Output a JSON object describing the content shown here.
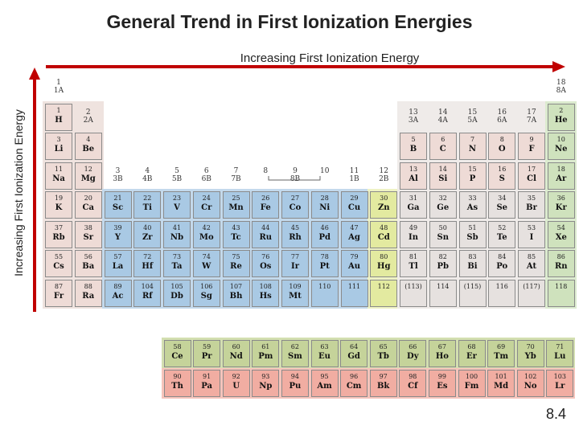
{
  "title": "General Trend in First Ionization Energies",
  "horizontal_trend_label": "Increasing First Ionization Energy",
  "vertical_trend_label": "Increasing First Ionization Energy",
  "page_number": "8.4",
  "colors": {
    "arrow": "#c00000",
    "pink": "#eedbd6",
    "blue": "#a9c9e4",
    "yellow": "#e3eaa0",
    "grey": "#e6e1df",
    "green": "#cfe2bd",
    "olive": "#c5d39a",
    "salmon": "#f1ada2"
  },
  "group_labels": [
    {
      "col": 1,
      "row": 0,
      "text": "1\n1A"
    },
    {
      "col": 2,
      "row": 1,
      "text": "2\n2A"
    },
    {
      "col": 3,
      "row": 3,
      "text": "3\n3B"
    },
    {
      "col": 4,
      "row": 3,
      "text": "4\n4B"
    },
    {
      "col": 5,
      "row": 3,
      "text": "5\n5B"
    },
    {
      "col": 6,
      "row": 3,
      "text": "6\n6B"
    },
    {
      "col": 7,
      "row": 3,
      "text": "7\n7B"
    },
    {
      "col": 8,
      "row": 3,
      "text": "8"
    },
    {
      "col": 9,
      "row": 3,
      "text": "9\n8B"
    },
    {
      "col": 10,
      "row": 3,
      "text": "10"
    },
    {
      "col": 11,
      "row": 3,
      "text": "11\n1B"
    },
    {
      "col": 12,
      "row": 3,
      "text": "12\n2B"
    },
    {
      "col": 13,
      "row": 1,
      "text": "13\n3A"
    },
    {
      "col": 14,
      "row": 1,
      "text": "14\n4A"
    },
    {
      "col": 15,
      "row": 1,
      "text": "15\n5A"
    },
    {
      "col": 16,
      "row": 1,
      "text": "16\n6A"
    },
    {
      "col": 17,
      "row": 1,
      "text": "17\n7A"
    },
    {
      "col": 18,
      "row": 0,
      "text": "18\n8A"
    }
  ],
  "elements": [
    {
      "n": "1",
      "s": "H",
      "col": 1,
      "row": 1,
      "c": "pink"
    },
    {
      "n": "2",
      "s": "He",
      "col": 18,
      "row": 1,
      "c": "green"
    },
    {
      "n": "3",
      "s": "Li",
      "col": 1,
      "row": 2,
      "c": "pink"
    },
    {
      "n": "4",
      "s": "Be",
      "col": 2,
      "row": 2,
      "c": "pink"
    },
    {
      "n": "5",
      "s": "B",
      "col": 13,
      "row": 2,
      "c": "pink"
    },
    {
      "n": "6",
      "s": "C",
      "col": 14,
      "row": 2,
      "c": "pink"
    },
    {
      "n": "7",
      "s": "N",
      "col": 15,
      "row": 2,
      "c": "pink"
    },
    {
      "n": "8",
      "s": "O",
      "col": 16,
      "row": 2,
      "c": "pink"
    },
    {
      "n": "9",
      "s": "F",
      "col": 17,
      "row": 2,
      "c": "pink"
    },
    {
      "n": "10",
      "s": "Ne",
      "col": 18,
      "row": 2,
      "c": "green"
    },
    {
      "n": "11",
      "s": "Na",
      "col": 1,
      "row": 3,
      "c": "pink"
    },
    {
      "n": "12",
      "s": "Mg",
      "col": 2,
      "row": 3,
      "c": "pink"
    },
    {
      "n": "13",
      "s": "Al",
      "col": 13,
      "row": 3,
      "c": "pink"
    },
    {
      "n": "14",
      "s": "Si",
      "col": 14,
      "row": 3,
      "c": "pink"
    },
    {
      "n": "15",
      "s": "P",
      "col": 15,
      "row": 3,
      "c": "pink"
    },
    {
      "n": "16",
      "s": "S",
      "col": 16,
      "row": 3,
      "c": "pink"
    },
    {
      "n": "17",
      "s": "Cl",
      "col": 17,
      "row": 3,
      "c": "pink"
    },
    {
      "n": "18",
      "s": "Ar",
      "col": 18,
      "row": 3,
      "c": "green"
    },
    {
      "n": "19",
      "s": "K",
      "col": 1,
      "row": 4,
      "c": "pink"
    },
    {
      "n": "20",
      "s": "Ca",
      "col": 2,
      "row": 4,
      "c": "pink"
    },
    {
      "n": "21",
      "s": "Sc",
      "col": 3,
      "row": 4,
      "c": "blue"
    },
    {
      "n": "22",
      "s": "Ti",
      "col": 4,
      "row": 4,
      "c": "blue"
    },
    {
      "n": "23",
      "s": "V",
      "col": 5,
      "row": 4,
      "c": "blue"
    },
    {
      "n": "24",
      "s": "Cr",
      "col": 6,
      "row": 4,
      "c": "blue"
    },
    {
      "n": "25",
      "s": "Mn",
      "col": 7,
      "row": 4,
      "c": "blue"
    },
    {
      "n": "26",
      "s": "Fe",
      "col": 8,
      "row": 4,
      "c": "blue"
    },
    {
      "n": "27",
      "s": "Co",
      "col": 9,
      "row": 4,
      "c": "blue"
    },
    {
      "n": "28",
      "s": "Ni",
      "col": 10,
      "row": 4,
      "c": "blue"
    },
    {
      "n": "29",
      "s": "Cu",
      "col": 11,
      "row": 4,
      "c": "blue"
    },
    {
      "n": "30",
      "s": "Zn",
      "col": 12,
      "row": 4,
      "c": "yellow"
    },
    {
      "n": "31",
      "s": "Ga",
      "col": 13,
      "row": 4,
      "c": "grey"
    },
    {
      "n": "32",
      "s": "Ge",
      "col": 14,
      "row": 4,
      "c": "grey"
    },
    {
      "n": "33",
      "s": "As",
      "col": 15,
      "row": 4,
      "c": "grey"
    },
    {
      "n": "34",
      "s": "Se",
      "col": 16,
      "row": 4,
      "c": "grey"
    },
    {
      "n": "35",
      "s": "Br",
      "col": 17,
      "row": 4,
      "c": "grey"
    },
    {
      "n": "36",
      "s": "Kr",
      "col": 18,
      "row": 4,
      "c": "green"
    },
    {
      "n": "37",
      "s": "Rb",
      "col": 1,
      "row": 5,
      "c": "pink"
    },
    {
      "n": "38",
      "s": "Sr",
      "col": 2,
      "row": 5,
      "c": "pink"
    },
    {
      "n": "39",
      "s": "Y",
      "col": 3,
      "row": 5,
      "c": "blue"
    },
    {
      "n": "40",
      "s": "Zr",
      "col": 4,
      "row": 5,
      "c": "blue"
    },
    {
      "n": "41",
      "s": "Nb",
      "col": 5,
      "row": 5,
      "c": "blue"
    },
    {
      "n": "42",
      "s": "Mo",
      "col": 6,
      "row": 5,
      "c": "blue"
    },
    {
      "n": "43",
      "s": "Tc",
      "col": 7,
      "row": 5,
      "c": "blue"
    },
    {
      "n": "44",
      "s": "Ru",
      "col": 8,
      "row": 5,
      "c": "blue"
    },
    {
      "n": "45",
      "s": "Rh",
      "col": 9,
      "row": 5,
      "c": "blue"
    },
    {
      "n": "46",
      "s": "Pd",
      "col": 10,
      "row": 5,
      "c": "blue"
    },
    {
      "n": "47",
      "s": "Ag",
      "col": 11,
      "row": 5,
      "c": "blue"
    },
    {
      "n": "48",
      "s": "Cd",
      "col": 12,
      "row": 5,
      "c": "yellow"
    },
    {
      "n": "49",
      "s": "In",
      "col": 13,
      "row": 5,
      "c": "grey"
    },
    {
      "n": "50",
      "s": "Sn",
      "col": 14,
      "row": 5,
      "c": "grey"
    },
    {
      "n": "51",
      "s": "Sb",
      "col": 15,
      "row": 5,
      "c": "grey"
    },
    {
      "n": "52",
      "s": "Te",
      "col": 16,
      "row": 5,
      "c": "grey"
    },
    {
      "n": "53",
      "s": "I",
      "col": 17,
      "row": 5,
      "c": "grey"
    },
    {
      "n": "54",
      "s": "Xe",
      "col": 18,
      "row": 5,
      "c": "green"
    },
    {
      "n": "55",
      "s": "Cs",
      "col": 1,
      "row": 6,
      "c": "pink"
    },
    {
      "n": "56",
      "s": "Ba",
      "col": 2,
      "row": 6,
      "c": "pink"
    },
    {
      "n": "57",
      "s": "La",
      "col": 3,
      "row": 6,
      "c": "blue"
    },
    {
      "n": "72",
      "s": "Hf",
      "col": 4,
      "row": 6,
      "c": "blue"
    },
    {
      "n": "73",
      "s": "Ta",
      "col": 5,
      "row": 6,
      "c": "blue"
    },
    {
      "n": "74",
      "s": "W",
      "col": 6,
      "row": 6,
      "c": "blue"
    },
    {
      "n": "75",
      "s": "Re",
      "col": 7,
      "row": 6,
      "c": "blue"
    },
    {
      "n": "76",
      "s": "Os",
      "col": 8,
      "row": 6,
      "c": "blue"
    },
    {
      "n": "77",
      "s": "Ir",
      "col": 9,
      "row": 6,
      "c": "blue"
    },
    {
      "n": "78",
      "s": "Pt",
      "col": 10,
      "row": 6,
      "c": "blue"
    },
    {
      "n": "79",
      "s": "Au",
      "col": 11,
      "row": 6,
      "c": "blue"
    },
    {
      "n": "80",
      "s": "Hg",
      "col": 12,
      "row": 6,
      "c": "yellow"
    },
    {
      "n": "81",
      "s": "Tl",
      "col": 13,
      "row": 6,
      "c": "grey"
    },
    {
      "n": "82",
      "s": "Pb",
      "col": 14,
      "row": 6,
      "c": "grey"
    },
    {
      "n": "83",
      "s": "Bi",
      "col": 15,
      "row": 6,
      "c": "grey"
    },
    {
      "n": "84",
      "s": "Po",
      "col": 16,
      "row": 6,
      "c": "grey"
    },
    {
      "n": "85",
      "s": "At",
      "col": 17,
      "row": 6,
      "c": "grey"
    },
    {
      "n": "86",
      "s": "Rn",
      "col": 18,
      "row": 6,
      "c": "green"
    },
    {
      "n": "87",
      "s": "Fr",
      "col": 1,
      "row": 7,
      "c": "pink"
    },
    {
      "n": "88",
      "s": "Ra",
      "col": 2,
      "row": 7,
      "c": "pink"
    },
    {
      "n": "89",
      "s": "Ac",
      "col": 3,
      "row": 7,
      "c": "blue"
    },
    {
      "n": "104",
      "s": "Rf",
      "col": 4,
      "row": 7,
      "c": "blue"
    },
    {
      "n": "105",
      "s": "Db",
      "col": 5,
      "row": 7,
      "c": "blue"
    },
    {
      "n": "106",
      "s": "Sg",
      "col": 6,
      "row": 7,
      "c": "blue"
    },
    {
      "n": "107",
      "s": "Bh",
      "col": 7,
      "row": 7,
      "c": "blue"
    },
    {
      "n": "108",
      "s": "Hs",
      "col": 8,
      "row": 7,
      "c": "blue"
    },
    {
      "n": "109",
      "s": "Mt",
      "col": 9,
      "row": 7,
      "c": "blue"
    },
    {
      "n": "110",
      "s": "",
      "col": 10,
      "row": 7,
      "c": "blue"
    },
    {
      "n": "111",
      "s": "",
      "col": 11,
      "row": 7,
      "c": "blue"
    },
    {
      "n": "112",
      "s": "",
      "col": 12,
      "row": 7,
      "c": "yellow"
    },
    {
      "n": "(113)",
      "s": "",
      "col": 13,
      "row": 7,
      "c": "grey"
    },
    {
      "n": "114",
      "s": "",
      "col": 14,
      "row": 7,
      "c": "grey"
    },
    {
      "n": "(115)",
      "s": "",
      "col": 15,
      "row": 7,
      "c": "grey"
    },
    {
      "n": "116",
      "s": "",
      "col": 16,
      "row": 7,
      "c": "grey"
    },
    {
      "n": "(117)",
      "s": "",
      "col": 17,
      "row": 7,
      "c": "grey"
    },
    {
      "n": "118",
      "s": "",
      "col": 18,
      "row": 7,
      "c": "green"
    }
  ],
  "lanthanides": [
    {
      "n": "58",
      "s": "Ce",
      "c": "olive"
    },
    {
      "n": "59",
      "s": "Pr",
      "c": "olive"
    },
    {
      "n": "60",
      "s": "Nd",
      "c": "olive"
    },
    {
      "n": "61",
      "s": "Pm",
      "c": "olive"
    },
    {
      "n": "62",
      "s": "Sm",
      "c": "olive"
    },
    {
      "n": "63",
      "s": "Eu",
      "c": "olive"
    },
    {
      "n": "64",
      "s": "Gd",
      "c": "olive"
    },
    {
      "n": "65",
      "s": "Tb",
      "c": "olive"
    },
    {
      "n": "66",
      "s": "Dy",
      "c": "olive"
    },
    {
      "n": "67",
      "s": "Ho",
      "c": "olive"
    },
    {
      "n": "68",
      "s": "Er",
      "c": "olive"
    },
    {
      "n": "69",
      "s": "Tm",
      "c": "olive"
    },
    {
      "n": "70",
      "s": "Yb",
      "c": "olive"
    },
    {
      "n": "71",
      "s": "Lu",
      "c": "olive"
    }
  ],
  "actinides": [
    {
      "n": "90",
      "s": "Th",
      "c": "salmon"
    },
    {
      "n": "91",
      "s": "Pa",
      "c": "salmon"
    },
    {
      "n": "92",
      "s": "U",
      "c": "salmon"
    },
    {
      "n": "93",
      "s": "Np",
      "c": "salmon"
    },
    {
      "n": "94",
      "s": "Pu",
      "c": "salmon"
    },
    {
      "n": "95",
      "s": "Am",
      "c": "salmon"
    },
    {
      "n": "96",
      "s": "Cm",
      "c": "salmon"
    },
    {
      "n": "97",
      "s": "Bk",
      "c": "salmon"
    },
    {
      "n": "98",
      "s": "Cf",
      "c": "salmon"
    },
    {
      "n": "99",
      "s": "Es",
      "c": "salmon"
    },
    {
      "n": "100",
      "s": "Fm",
      "c": "salmon"
    },
    {
      "n": "101",
      "s": "Md",
      "c": "salmon"
    },
    {
      "n": "102",
      "s": "No",
      "c": "salmon"
    },
    {
      "n": "103",
      "s": "Lr",
      "c": "salmon"
    }
  ]
}
